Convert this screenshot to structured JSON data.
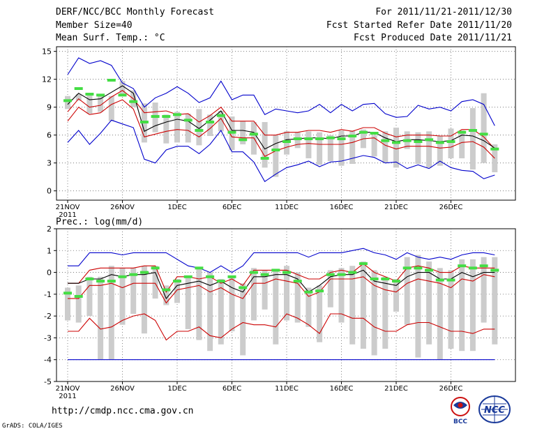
{
  "header": {
    "title": "DERF/NCC/BCC Monthly Forecast",
    "member_size": "Member Size=40",
    "variable": "Mean Surf. Temp.: °C",
    "forecast_period": "For 2011/11/21-2011/12/30",
    "started_refer": "Fcst Started Refer Date 2011/11/20",
    "produced": "Fcst Produced Date 2011/11/21"
  },
  "footer": {
    "url": "http://cmdp.ncc.cma.gov.cn",
    "credit": "GrADS: COLA/IGES",
    "logo_left_text": "BCC",
    "logo_right_text": "NCC"
  },
  "colors": {
    "max_min": "#0000cc",
    "quartile": "#cc0000",
    "median": "#000000",
    "box": "#cccccc",
    "observed": "#44dd44"
  },
  "chart_data": [
    {
      "type": "box",
      "title": "Mean Surf. Temp.: °C",
      "ylim": [
        -1,
        15.5
      ],
      "yticks": [
        0,
        3,
        6,
        9,
        12,
        15
      ],
      "days": 40,
      "xtick_days": [
        1,
        6,
        11,
        16,
        21,
        26,
        31,
        36
      ],
      "xtick_labels": [
        "21NOV",
        "26NOV",
        "1DEC",
        "6DEC",
        "11DEC",
        "16DEC",
        "21DEC",
        "26DEC"
      ],
      "xtick_year": "2011",
      "series": [
        {
          "name": "max",
          "values": [
            12.5,
            14.3,
            13.7,
            14.0,
            13.5,
            11.6,
            11.0,
            9.0,
            10.0,
            10.5,
            11.2,
            10.5,
            9.5,
            10.0,
            11.8,
            9.8,
            10.3,
            10.3,
            8.2,
            8.8,
            8.6,
            8.4,
            8.6,
            9.3,
            8.4,
            9.3,
            8.6,
            9.3,
            9.4,
            8.3,
            7.9,
            8.0,
            9.2,
            8.8,
            9.0,
            8.6,
            9.6,
            9.8,
            9.3,
            7.0
          ]
        },
        {
          "name": "q75",
          "values": [
            8.5,
            9.9,
            9.0,
            9.2,
            10.1,
            10.8,
            9.9,
            8.4,
            8.5,
            8.6,
            8.2,
            8.3,
            7.4,
            8.1,
            9.0,
            7.5,
            7.5,
            7.5,
            6.0,
            6.0,
            6.3,
            6.3,
            6.5,
            6.5,
            6.3,
            6.6,
            6.4,
            6.8,
            6.8,
            6.2,
            5.8,
            6.0,
            6.0,
            6.0,
            5.9,
            5.9,
            6.6,
            6.6,
            5.8,
            4.5
          ]
        },
        {
          "name": "median",
          "values": [
            9.3,
            10.5,
            9.8,
            9.9,
            10.6,
            11.3,
            10.5,
            6.4,
            7.0,
            7.4,
            7.7,
            7.5,
            6.7,
            7.6,
            8.6,
            6.5,
            6.5,
            6.3,
            4.5,
            5.1,
            5.5,
            5.6,
            5.7,
            5.7,
            5.6,
            5.9,
            5.9,
            6.3,
            6.3,
            5.7,
            5.3,
            5.5,
            5.5,
            5.4,
            5.3,
            5.4,
            6.0,
            5.9,
            5.4,
            4.6
          ]
        },
        {
          "name": "q25",
          "values": [
            7.5,
            9.0,
            8.2,
            8.4,
            9.3,
            9.8,
            8.8,
            5.8,
            6.1,
            6.4,
            6.6,
            6.5,
            5.8,
            6.7,
            7.8,
            5.8,
            5.7,
            5.7,
            3.7,
            4.3,
            4.7,
            5.0,
            5.1,
            5.0,
            5.0,
            5.0,
            5.2,
            5.6,
            5.7,
            4.9,
            4.5,
            4.8,
            4.8,
            4.8,
            4.6,
            4.7,
            5.2,
            5.3,
            4.7,
            3.5
          ]
        },
        {
          "name": "min",
          "values": [
            5.2,
            6.5,
            5.0,
            6.2,
            7.6,
            7.2,
            6.8,
            3.4,
            3.0,
            4.4,
            4.8,
            4.8,
            4.0,
            5.0,
            6.5,
            4.2,
            4.2,
            3.1,
            1.0,
            1.8,
            2.5,
            2.8,
            3.2,
            2.6,
            3.1,
            3.2,
            3.5,
            3.8,
            3.6,
            3.0,
            3.1,
            2.4,
            2.8,
            2.4,
            3.2,
            2.5,
            2.2,
            2.1,
            1.3,
            1.7
          ]
        },
        {
          "name": "box_top",
          "values": [
            10.2,
            10.4,
            10.5,
            10.4,
            10.2,
            11.8,
            10.8,
            9.4,
            9.5,
            8.2,
            8.5,
            8.3,
            8.8,
            8.2,
            8.6,
            8.0,
            7.5,
            7.4,
            7.4,
            6.0,
            6.4,
            6.3,
            6.4,
            6.3,
            6.0,
            6.5,
            6.5,
            6.6,
            6.0,
            6.4,
            6.8,
            6.4,
            6.3,
            6.4,
            5.9,
            6.7,
            6.5,
            8.9,
            10.5,
            5.0
          ]
        },
        {
          "name": "box_bottom",
          "values": [
            8.8,
            9.7,
            8.3,
            8.5,
            7.5,
            10.2,
            9.0,
            5.2,
            6.3,
            5.1,
            5.2,
            5.2,
            4.9,
            5.9,
            6.4,
            4.4,
            5.0,
            3.9,
            2.5,
            1.5,
            3.9,
            4.6,
            3.5,
            2.8,
            3.2,
            2.7,
            2.9,
            4.6,
            3.7,
            3.0,
            2.5,
            4.5,
            2.9,
            2.5,
            2.7,
            3.5,
            3.5,
            2.3,
            3.0,
            2.0
          ]
        },
        {
          "name": "observed",
          "values": [
            9.7,
            11.0,
            10.4,
            10.3,
            11.9,
            10.3,
            9.6,
            7.4,
            8.0,
            8.0,
            8.2,
            7.6,
            6.5,
            7.4,
            8.1,
            6.3,
            5.5,
            6.1,
            3.5,
            4.4,
            5.3,
            5.6,
            5.6,
            5.6,
            5.7,
            5.6,
            5.9,
            6.3,
            6.2,
            5.4,
            5.2,
            5.4,
            5.3,
            5.5,
            5.2,
            5.3,
            6.3,
            6.5,
            6.1,
            4.5
          ]
        }
      ]
    },
    {
      "type": "box",
      "title": "Prec.: log(mm/d)",
      "ylim": [
        -5,
        2
      ],
      "yticks": [
        -5,
        -4,
        -3,
        -2,
        -1,
        0,
        1,
        2
      ],
      "days": 40,
      "xtick_days": [
        1,
        6,
        11,
        16,
        21,
        26,
        31,
        36
      ],
      "xtick_labels": [
        "21NOV",
        "26NOV",
        "1DEC",
        "6DEC",
        "11DEC",
        "16DEC",
        "21DEC",
        "26DEC"
      ],
      "xtick_year": "2011",
      "series": [
        {
          "name": "max",
          "values": [
            0.3,
            0.3,
            0.9,
            0.9,
            0.9,
            0.8,
            0.9,
            0.9,
            0.9,
            0.9,
            0.6,
            0.3,
            0.2,
            0.0,
            0.3,
            0.0,
            0.3,
            0.9,
            0.9,
            0.9,
            0.9,
            0.9,
            0.7,
            0.9,
            0.9,
            0.9,
            1.0,
            1.1,
            0.9,
            0.8,
            0.6,
            0.9,
            0.7,
            0.6,
            0.7,
            0.6,
            0.8,
            0.9,
            0.9,
            0.8
          ]
        },
        {
          "name": "q75",
          "values": [
            -0.5,
            -0.5,
            0.1,
            0.2,
            0.2,
            0.2,
            0.2,
            0.3,
            0.3,
            -0.9,
            -0.2,
            -0.2,
            -0.3,
            -0.2,
            -0.5,
            -0.3,
            -0.6,
            0.1,
            0.1,
            0.1,
            0.1,
            -0.1,
            -0.3,
            -0.3,
            0.0,
            0.1,
            0.0,
            0.4,
            0.0,
            -0.2,
            -0.4,
            0.2,
            0.3,
            0.2,
            0.0,
            0.0,
            0.3,
            0.2,
            0.2,
            0.2
          ]
        },
        {
          "name": "median",
          "values": [
            -0.5,
            -0.5,
            -0.3,
            -0.3,
            -0.1,
            -0.2,
            -0.1,
            -0.1,
            0.0,
            -1.2,
            -0.6,
            -0.5,
            -0.4,
            -0.6,
            -0.4,
            -0.7,
            -0.9,
            -0.2,
            -0.2,
            -0.1,
            -0.1,
            -0.3,
            -0.9,
            -0.6,
            -0.2,
            -0.1,
            -0.1,
            0.1,
            -0.4,
            -0.5,
            -0.6,
            -0.2,
            0.0,
            0.0,
            -0.3,
            -0.3,
            0.0,
            -0.2,
            0.0,
            0.0
          ]
        },
        {
          "name": "q25",
          "values": [
            -1.2,
            -1.2,
            -0.6,
            -0.6,
            -0.5,
            -0.7,
            -0.5,
            -0.5,
            -0.5,
            -1.4,
            -0.8,
            -0.7,
            -0.6,
            -0.9,
            -0.7,
            -1.0,
            -1.2,
            -0.5,
            -0.5,
            -0.3,
            -0.4,
            -0.5,
            -1.1,
            -0.9,
            -0.3,
            -0.3,
            -0.3,
            -0.2,
            -0.6,
            -0.8,
            -0.9,
            -0.5,
            -0.3,
            -0.4,
            -0.5,
            -0.7,
            -0.3,
            -0.4,
            -0.1,
            -0.2
          ]
        },
        {
          "name": "min",
          "values": [
            -2.7,
            -2.7,
            -2.1,
            -2.6,
            -2.5,
            -2.2,
            -2.0,
            -1.9,
            -2.2,
            -3.1,
            -2.7,
            -2.7,
            -2.5,
            -2.9,
            -3.0,
            -2.6,
            -2.3,
            -2.4,
            -2.4,
            -2.5,
            -1.9,
            -2.1,
            -2.4,
            -2.8,
            -1.9,
            -1.9,
            -2.1,
            -2.1,
            -2.5,
            -2.7,
            -2.7,
            -2.4,
            -2.3,
            -2.3,
            -2.5,
            -2.7,
            -2.7,
            -2.8,
            -2.6,
            -2.6
          ]
        },
        {
          "name": "lowest",
          "values": [
            -4.0,
            -4.0,
            -4.0,
            -4.0,
            -4.0,
            -4.0,
            -4.0,
            -4.0,
            -4.0,
            -4.0,
            -4.0,
            -4.0,
            -4.0,
            -4.0,
            -4.0,
            -4.0,
            -4.0,
            -4.0,
            -4.0,
            -4.0,
            -4.0,
            -4.0,
            -4.0,
            -4.0,
            -4.0,
            -4.0,
            -4.0,
            -4.0,
            -4.0,
            -4.0,
            -4.0,
            -4.0,
            -4.0,
            -4.0,
            -4.0,
            -4.0,
            -4.0,
            -4.0,
            -4.0,
            -4.0
          ]
        },
        {
          "name": "box_top",
          "values": [
            -0.7,
            -0.6,
            -0.2,
            -0.2,
            0.3,
            0.2,
            0.2,
            0.3,
            0.3,
            -0.6,
            -0.3,
            -0.2,
            0.2,
            0.0,
            -0.3,
            -0.2,
            -0.5,
            0.2,
            0.1,
            0.1,
            0.3,
            0.0,
            -0.7,
            -0.6,
            0.1,
            0.2,
            0.3,
            0.5,
            0.1,
            -0.2,
            -0.3,
            0.7,
            0.8,
            0.5,
            0.2,
            0.1,
            0.6,
            0.6,
            0.7,
            0.7
          ]
        },
        {
          "name": "box_bottom",
          "values": [
            -2.2,
            -2.3,
            -2.0,
            -4.0,
            -4.0,
            -2.4,
            -1.9,
            -2.8,
            -1.2,
            -1.5,
            -1.4,
            -2.6,
            -3.1,
            -3.6,
            -3.3,
            -2.7,
            -3.8,
            -2.2,
            -1.7,
            -3.3,
            -2.2,
            -2.3,
            -2.5,
            -3.2,
            -1.6,
            -2.3,
            -3.3,
            -3.5,
            -3.8,
            -3.5,
            -1.8,
            -2.4,
            -3.9,
            -3.3,
            -4.0,
            -3.5,
            -3.6,
            -3.6,
            -2.3,
            -3.3
          ]
        },
        {
          "name": "observed",
          "values": [
            -0.95,
            -1.1,
            -0.3,
            -0.4,
            -0.4,
            -0.2,
            -0.1,
            0.0,
            0.2,
            -0.8,
            -0.4,
            -0.2,
            0.2,
            -0.2,
            -0.4,
            -0.2,
            -0.7,
            0.0,
            -0.1,
            0.1,
            0.0,
            -0.4,
            -0.9,
            -0.85,
            -0.1,
            -0.1,
            0.0,
            0.4,
            -0.3,
            -0.3,
            -0.4,
            0.2,
            0.2,
            0.1,
            -0.35,
            -0.35,
            0.3,
            0.2,
            0.3,
            0.1
          ]
        }
      ]
    }
  ]
}
